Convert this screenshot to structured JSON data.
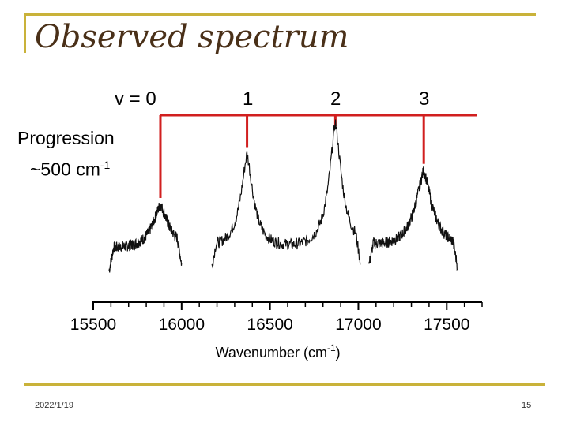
{
  "slide": {
    "title": "Observed spectrum",
    "progression_line1": "Progression",
    "progression_line2_prefix": "~500 cm",
    "progression_line2_sup": "-1",
    "date": "2022/1/19",
    "page_number": "15",
    "accent_color": "#c9b23a",
    "marker_color": "#d11f1f"
  },
  "vibrational_labels": [
    {
      "text": "v = 0",
      "x_wavenumber": 15880
    },
    {
      "text": "1",
      "x_wavenumber": 16370
    },
    {
      "text": "2",
      "x_wavenumber": 16870
    },
    {
      "text": "3",
      "x_wavenumber": 17370
    }
  ],
  "chart_data": {
    "type": "line",
    "xlabel": "Wavenumber (cm",
    "xlabel_sup": "-1",
    "xlabel_suffix": ")",
    "xlim": [
      15500,
      17700
    ],
    "xticks": [
      15500,
      16000,
      16500,
      17000,
      17500
    ],
    "ylabel": "",
    "grid": false,
    "peaks": [
      {
        "label": "v = 0",
        "x": 15880,
        "relative_intensity": 0.35
      },
      {
        "label": "1",
        "x": 16370,
        "relative_intensity": 0.75
      },
      {
        "label": "2",
        "x": 16870,
        "relative_intensity": 1.0
      },
      {
        "label": "3",
        "x": 17370,
        "relative_intensity": 0.62
      }
    ],
    "segments": [
      {
        "x_start": 15590,
        "x_end": 16000
      },
      {
        "x_start": 16170,
        "x_end": 17010
      },
      {
        "x_start": 17060,
        "x_end": 17560
      }
    ]
  }
}
